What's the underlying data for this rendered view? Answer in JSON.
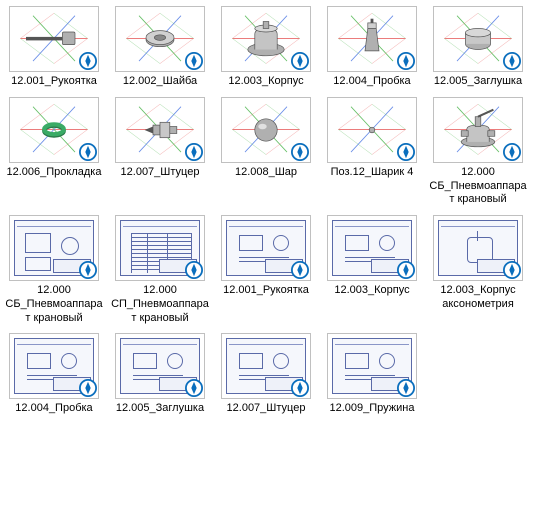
{
  "colors": {
    "border": "#c0c0c0",
    "badge_ring": "#0a6ebd",
    "badge_fill": "#ffffff",
    "star_lines": [
      "#e86a6a",
      "#68c068",
      "#6a8ee8"
    ],
    "shape_fill": "#b0b0b0",
    "shape_stroke": "#555555",
    "drawing_line": "#5a6aa8",
    "drawing_bg": "#f5f7fc"
  },
  "files": [
    {
      "name": "12.001_Рукоятка",
      "kind": "part",
      "shape": "rod"
    },
    {
      "name": "12.002_Шайба",
      "kind": "part",
      "shape": "washer"
    },
    {
      "name": "12.003_Корпус",
      "kind": "part",
      "shape": "body"
    },
    {
      "name": "12.004_Пробка",
      "kind": "part",
      "shape": "plug"
    },
    {
      "name": "12.005_Заглушка",
      "kind": "part",
      "shape": "cap"
    },
    {
      "name": "12.006_Прокладка",
      "kind": "part",
      "shape": "gasket"
    },
    {
      "name": "12.007_Штуцер",
      "kind": "part",
      "shape": "fitting"
    },
    {
      "name": "12.008_Шар",
      "kind": "part",
      "shape": "ball"
    },
    {
      "name": "Поз.12_Шарик 4",
      "kind": "part",
      "shape": "smallball"
    },
    {
      "name": "12.000 СБ_Пневмоаппарат крановый",
      "kind": "part",
      "shape": "assembly"
    },
    {
      "name": "12.000 СБ_Пневмоаппарат крановый",
      "kind": "drawing",
      "shape": "dwg_asm"
    },
    {
      "name": "12.000 СП_Пневмоаппарат крановый",
      "kind": "drawing",
      "shape": "dwg_spec"
    },
    {
      "name": "12.001_Рукоятка",
      "kind": "drawing",
      "shape": "dwg1"
    },
    {
      "name": "12.003_Корпус",
      "kind": "drawing",
      "shape": "dwg2"
    },
    {
      "name": "12.003_Корпус аксонометрия",
      "kind": "drawing",
      "shape": "dwg3"
    },
    {
      "name": "12.004_Пробка",
      "kind": "drawing",
      "shape": "dwg4"
    },
    {
      "name": "12.005_Заглушка",
      "kind": "drawing",
      "shape": "dwg5"
    },
    {
      "name": "12.007_Штуцер",
      "kind": "drawing",
      "shape": "dwg6"
    },
    {
      "name": "12.009_Пружина",
      "kind": "drawing",
      "shape": "dwg7"
    }
  ]
}
